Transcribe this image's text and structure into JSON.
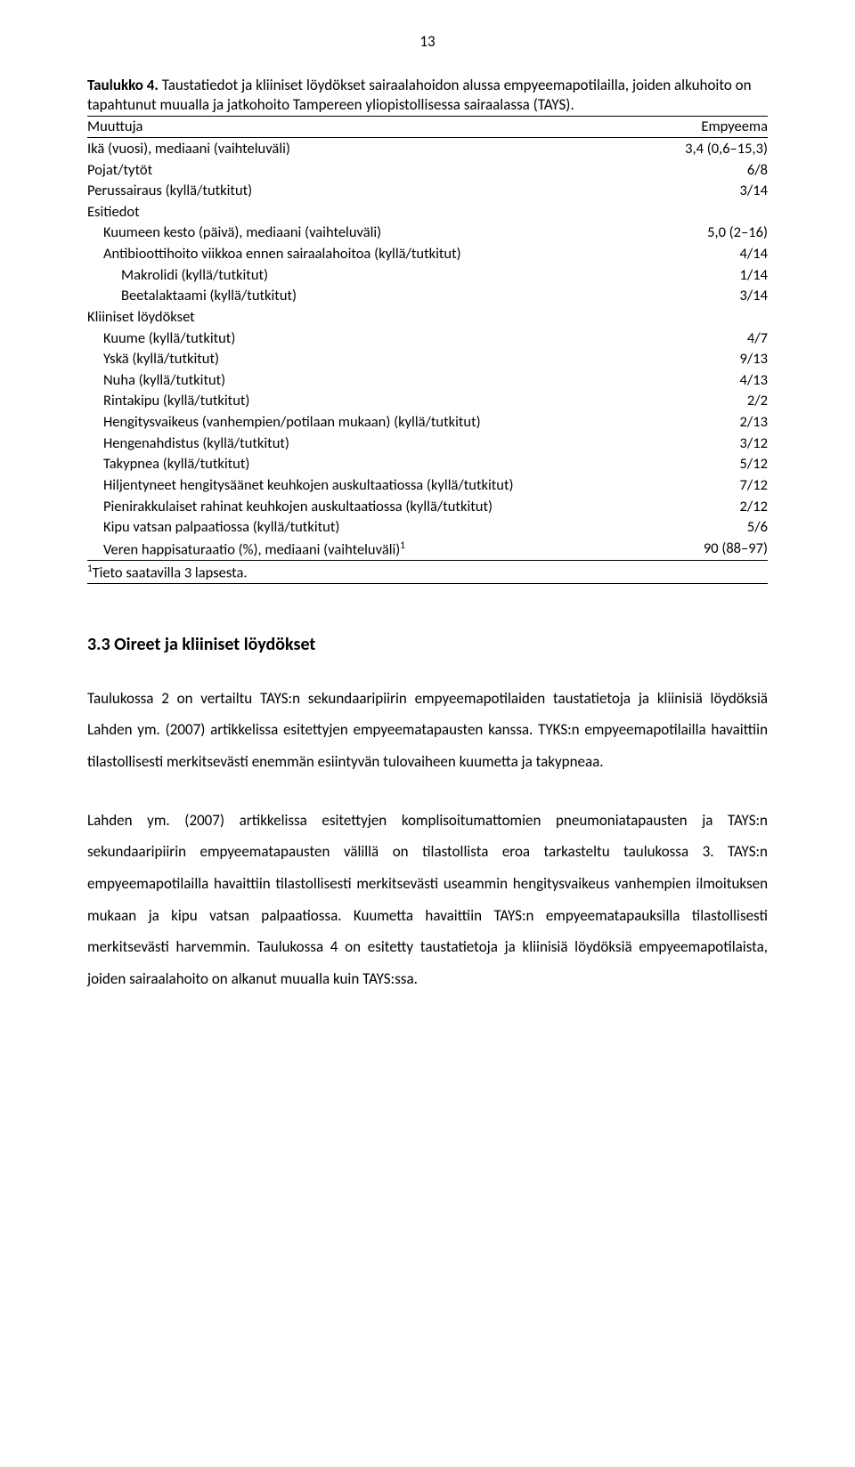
{
  "page_number": "13",
  "table_caption_bold": "Taulukko 4.",
  "table_caption_rest": " Taustatiedot ja kliiniset löydökset sairaalahoidon alussa empyeemapotilailla, joiden alkuhoito on tapahtunut muualla ja jatkohoito Tampereen yliopistollisessa sairaalassa (TAYS).",
  "header_row": {
    "label": "Muuttuja",
    "value": "Empyeema"
  },
  "rows": [
    {
      "label": "Ikä (vuosi), mediaani (vaihteluväli)",
      "value": "3,4 (0,6–15,3)",
      "indent": 0
    },
    {
      "label": "Pojat/tytöt",
      "value": "6/8",
      "indent": 0
    },
    {
      "label": "Perussairaus (kyllä/tutkitut)",
      "value": "3/14",
      "indent": 0
    },
    {
      "label": "Esitiedot",
      "value": "",
      "indent": 0
    },
    {
      "label": "Kuumeen kesto (päivä), mediaani (vaihteluväli)",
      "value": "5,0 (2–16)",
      "indent": 1
    },
    {
      "label": "Antibioottihoito viikkoa ennen sairaalahoitoa (kyllä/tutkitut)",
      "value": "4/14",
      "indent": 1
    },
    {
      "label": "Makrolidi (kyllä/tutkitut)",
      "value": "1/14",
      "indent": 2
    },
    {
      "label": "Beetalaktaami (kyllä/tutkitut)",
      "value": "3/14",
      "indent": 2
    },
    {
      "label": "Kliiniset löydökset",
      "value": "",
      "indent": 0
    },
    {
      "label": "Kuume (kyllä/tutkitut)",
      "value": "4/7",
      "indent": 1
    },
    {
      "label": "Yskä (kyllä/tutkitut)",
      "value": "9/13",
      "indent": 1
    },
    {
      "label": "Nuha (kyllä/tutkitut)",
      "value": "4/13",
      "indent": 1
    },
    {
      "label": "Rintakipu (kyllä/tutkitut)",
      "value": "2/2",
      "indent": 1
    },
    {
      "label": "Hengitysvaikeus (vanhempien/potilaan mukaan) (kyllä/tutkitut)",
      "value": "2/13",
      "indent": 1
    },
    {
      "label": "Hengenahdistus (kyllä/tutkitut)",
      "value": "3/12",
      "indent": 1
    },
    {
      "label": "Takypnea (kyllä/tutkitut)",
      "value": "5/12",
      "indent": 1
    },
    {
      "label": "Hiljentyneet hengitysäänet keuhkojen auskultaatiossa (kyllä/tutkitut)",
      "value": "7/12",
      "indent": 1
    },
    {
      "label": "Pienirakkulaiset rahinat keuhkojen auskultaatiossa (kyllä/tutkitut)",
      "value": "2/12",
      "indent": 1
    },
    {
      "label": "Kipu vatsan palpaatiossa (kyllä/tutkitut)",
      "value": "5/6",
      "indent": 1
    },
    {
      "label": "Veren happisaturaatio (%), mediaani (vaihteluväli)",
      "value": "90 (88–97)",
      "indent": 1,
      "sup": "1"
    }
  ],
  "footnote_sup": "1",
  "footnote_text": "Tieto saatavilla 3 lapsesta.",
  "section_heading": "3.3 Oireet ja kliiniset löydökset",
  "paragraphs": [
    "Taulukossa 2 on vertailtu TAYS:n sekundaaripiirin empyeemapotilaiden taustatietoja ja kliinisiä löydöksiä Lahden ym. (2007) artikkelissa esitettyjen empyeematapausten kanssa. TYKS:n empyeemapotilailla havaittiin tilastollisesti merkitsevästi enemmän esiintyvän tulovaiheen kuumetta ja takypneaa.",
    "Lahden ym. (2007) artikkelissa esitettyjen komplisoitumattomien pneumoniatapausten ja TAYS:n sekundaaripiirin empyeematapausten välillä on tilastollista eroa tarkasteltu taulukossa 3. TAYS:n empyeemapotilailla havaittiin tilastollisesti merkitsevästi useammin hengitysvaikeus vanhempien ilmoituksen mukaan ja kipu vatsan palpaatiossa. Kuumetta havaittiin TAYS:n empyeematapauksilla tilastollisesti merkitsevästi harvemmin. Taulukossa 4 on esitetty taustatietoja ja kliinisiä löydöksiä empyeemapotilaista, joiden sairaalahoito on alkanut muualla kuin TAYS:ssa."
  ]
}
